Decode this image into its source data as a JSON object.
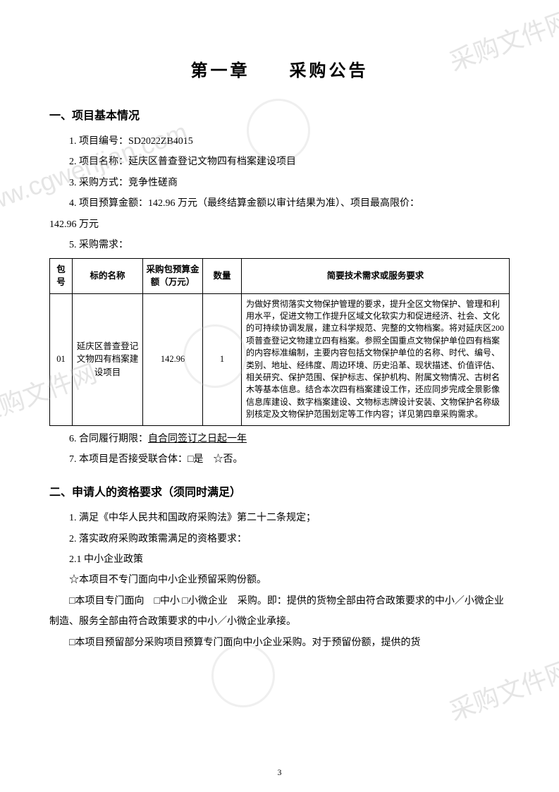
{
  "watermark_text": "www.cgwenjian.com",
  "watermark_cn": "采购文件网",
  "title": "第一章　　采购公告",
  "section1_heading": "一、项目基本情况",
  "items": {
    "i1": "1. 项目编号：SD2022ZB4015",
    "i2": "2. 项目名称：延庆区普查登记文物四有档案建设项目",
    "i3": "3. 采购方式：竞争性磋商",
    "i4a": "4. 项目预算金额：142.96 万元（最终结算金额以审计结果为准）、项目最高限价：",
    "i4b": "142.96 万元",
    "i5": "5. 采购需求：",
    "i6_prefix": "6. 合同履行期限：",
    "i6_underline": "自合同签订之日起一年",
    "i7": "7. 本项目是否接受联合体：□是　☆否。"
  },
  "table": {
    "headers": {
      "h0": "包号",
      "h1": "标的名称",
      "h2": "采购包预算金额（万元）",
      "h3": "数量",
      "h4": "简要技术需求或服务要求"
    },
    "row": {
      "c0": "01",
      "c1": "延庆区普查登记文物四有档案建设项目",
      "c2": "142.96",
      "c3": "1",
      "c4": "为做好贯彻落实文物保护管理的要求，提升全区文物保护、管理和利用水平，促进文物工作提升区域文化软实力和促进经济、社会、文化的可持续协调发展，建立科学规范、完整的文物档案。将对延庆区200 项普查登记文物建立四有档案。参照全国重点文物保护单位四有档案的内容标准编制，主要内容包括文物保护单位的名称、时代、编号、类别、地址、经纬度、周边环境、历史沿革、现状描述、价值评估、相关研究、保护范围、保护标志、保护机构、附属文物情况、古树名木等基本信息。结合本次四有档案建设工作，还应同步完成全景影像信息库建设、数字档案建设、文物标志牌设计安装、文物保护名称级别核定及文物保护范围划定等工作内容；详见第四章采购需求。"
    }
  },
  "section2_heading": "二、申请人的资格要求（须同时满足）",
  "sec2": {
    "l1": "1. 满足《中华人民共和国政府采购法》第二十二条规定；",
    "l2": "2. 落实政府采购政策需满足的资格要求：",
    "l21": "2.1 中小企业政策",
    "l22": "☆本项目不专门面向中小企业预留采购份额。",
    "l23": "□本项目专门面向　□中小 □小微企业　采购。即：提供的货物全部由符合政策要求的中小／小微企业制造、服务全部由符合政策要求的中小／小微企业承接。",
    "l24": "□本项目预留部分采购项目预算专门面向中小企业采购。对于预留份额，提供的货"
  },
  "page_number": "3",
  "colors": {
    "text": "#000000",
    "bg": "#ffffff",
    "watermark": "rgba(180,180,180,0.35)"
  }
}
